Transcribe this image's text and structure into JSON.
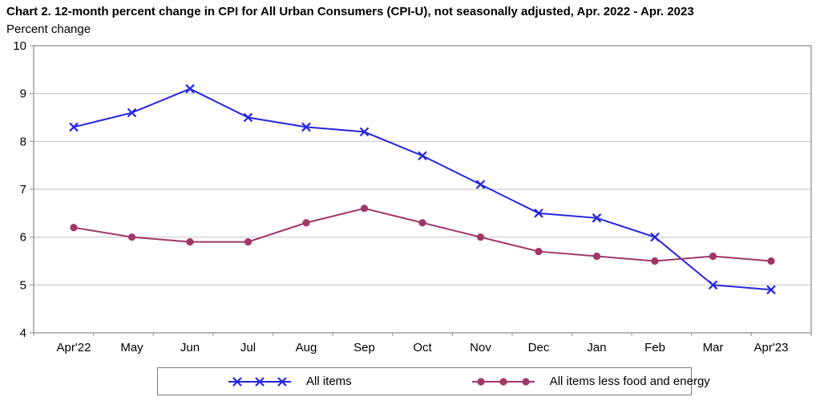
{
  "chart_data": {
    "type": "line",
    "title": "Chart 2. 12-month percent change in CPI for All Urban Consumers (CPI-U), not seasonally adjusted, Apr. 2022 - Apr. 2023",
    "ylabel": "Percent change",
    "xlabel": "",
    "categories": [
      "Apr'22",
      "May",
      "Jun",
      "Jul",
      "Aug",
      "Sep",
      "Oct",
      "Nov",
      "Dec",
      "Jan",
      "Feb",
      "Mar",
      "Apr'23"
    ],
    "series": [
      {
        "name": "All items",
        "marker": "x",
        "color": "#2424e0",
        "values": [
          8.3,
          8.6,
          9.1,
          8.5,
          8.3,
          8.2,
          7.7,
          7.1,
          6.5,
          6.4,
          6.0,
          5.0,
          4.9
        ]
      },
      {
        "name": "All items less food and energy",
        "marker": "circle",
        "color": "#a03768",
        "values": [
          6.2,
          6.0,
          5.9,
          5.9,
          6.3,
          6.6,
          6.3,
          6.0,
          5.7,
          5.6,
          5.5,
          5.6,
          5.5
        ]
      }
    ],
    "ylim": [
      4,
      10
    ],
    "yticks": [
      4,
      5,
      6,
      7,
      8,
      9,
      10
    ],
    "grid": true,
    "legend_position": "bottom",
    "colors": {
      "grid": "#c9c9c9",
      "plot_border": "#a0a0a0",
      "text": "#000000",
      "legend_border": "#7f7f7f"
    }
  }
}
